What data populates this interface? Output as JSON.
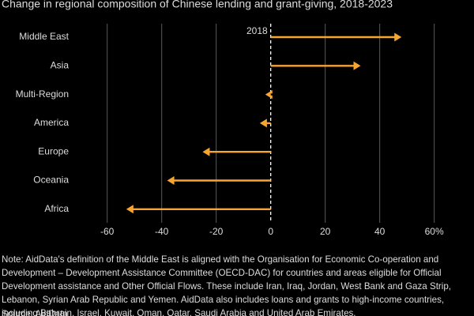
{
  "chart_data": {
    "type": "arrow",
    "title": "Change in regional composition of Chinese lending and grant-giving, 2018-2023",
    "annotation": "2018",
    "categories": [
      "Middle East",
      "Asia",
      "Multi-Region",
      "America",
      "Europe",
      "Oceania",
      "Africa"
    ],
    "values": [
      48,
      33,
      -2,
      -4,
      -25,
      -38,
      -53
    ],
    "color": "#f7a531",
    "xlim": [
      -66,
      63
    ],
    "xticks": [
      -60,
      -40,
      -20,
      0,
      20,
      40,
      {
        "value": 60,
        "label": "60%"
      }
    ],
    "grid": true,
    "note": "Note: AidData's definition of the Middle East is aligned with the Organisation for Economic Co-operation and Development – Development Assistance Committee (OECD-DAC) for countries and areas eligible for Official Development assistance and Other Official Flows. These include Iran, Iraq, Jordan, West Bank and Gaza Strip, Lebanon, Syrian Arab Republic and Yemen. AidData also includes loans and grants to high-income countries, including Bahrain, Israel, Kuwait, Oman, Qatar, Saudi Arabia and United Arab Emirates.",
    "source": "Source: AidData"
  }
}
